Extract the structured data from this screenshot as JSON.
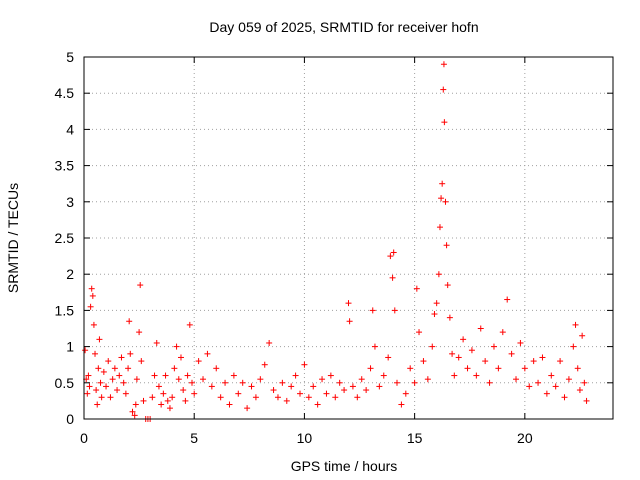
{
  "chart_data": {
    "type": "scatter",
    "title": "Day 059 of 2025, SRMTID for receiver hofn",
    "xlabel": "GPS time / hours",
    "ylabel": "SRMTID / TECUs",
    "xlim": [
      0,
      24
    ],
    "ylim": [
      0,
      5
    ],
    "xticks": [
      0,
      5,
      10,
      15,
      20
    ],
    "xtick_labels": [
      "0",
      "5",
      "10",
      "15",
      "20"
    ],
    "yticks": [
      0,
      0.5,
      1,
      1.5,
      2,
      2.5,
      3,
      3.5,
      4,
      4.5,
      5
    ],
    "ytick_labels": [
      "0",
      "0.5",
      "1",
      "1.5",
      "2",
      "2.5",
      "3",
      "3.5",
      "4",
      "4.5",
      "5"
    ],
    "grid": true,
    "marker": "+",
    "color": "#ff0000",
    "series": [
      {
        "name": "SRMTID",
        "points": [
          [
            0.05,
            0.95
          ],
          [
            0.1,
            0.55
          ],
          [
            0.15,
            0.35
          ],
          [
            0.2,
            0.6
          ],
          [
            0.25,
            0.45
          ],
          [
            0.3,
            1.55
          ],
          [
            0.35,
            1.8
          ],
          [
            0.4,
            1.7
          ],
          [
            0.45,
            1.3
          ],
          [
            0.5,
            0.9
          ],
          [
            0.55,
            0.4
          ],
          [
            0.6,
            0.2
          ],
          [
            0.65,
            0.7
          ],
          [
            0.7,
            1.1
          ],
          [
            0.75,
            0.5
          ],
          [
            0.8,
            0.3
          ],
          [
            0.9,
            0.65
          ],
          [
            1.0,
            0.45
          ],
          [
            1.1,
            0.8
          ],
          [
            1.2,
            0.3
          ],
          [
            1.3,
            0.55
          ],
          [
            1.4,
            0.7
          ],
          [
            1.5,
            0.4
          ],
          [
            1.6,
            0.6
          ],
          [
            1.7,
            0.85
          ],
          [
            1.8,
            0.5
          ],
          [
            1.9,
            0.35
          ],
          [
            2.0,
            0.7
          ],
          [
            2.05,
            1.35
          ],
          [
            2.1,
            0.9
          ],
          [
            2.2,
            0.1
          ],
          [
            2.3,
            0.05
          ],
          [
            2.35,
            0.2
          ],
          [
            2.4,
            0.55
          ],
          [
            2.5,
            1.2
          ],
          [
            2.55,
            1.85
          ],
          [
            2.6,
            0.8
          ],
          [
            2.7,
            0.25
          ],
          [
            2.8,
            0.0
          ],
          [
            2.9,
            0.0
          ],
          [
            3.0,
            0.0
          ],
          [
            3.1,
            0.3
          ],
          [
            3.2,
            0.6
          ],
          [
            3.3,
            1.05
          ],
          [
            3.4,
            0.45
          ],
          [
            3.5,
            0.2
          ],
          [
            3.6,
            0.35
          ],
          [
            3.7,
            0.6
          ],
          [
            3.8,
            0.25
          ],
          [
            3.9,
            0.15
          ],
          [
            4.0,
            0.3
          ],
          [
            4.1,
            0.7
          ],
          [
            4.2,
            1.0
          ],
          [
            4.3,
            0.55
          ],
          [
            4.4,
            0.85
          ],
          [
            4.5,
            0.4
          ],
          [
            4.6,
            0.25
          ],
          [
            4.7,
            0.6
          ],
          [
            4.8,
            1.3
          ],
          [
            4.9,
            0.5
          ],
          [
            5.0,
            0.35
          ],
          [
            5.2,
            0.8
          ],
          [
            5.4,
            0.55
          ],
          [
            5.6,
            0.9
          ],
          [
            5.8,
            0.45
          ],
          [
            6.0,
            0.7
          ],
          [
            6.2,
            0.3
          ],
          [
            6.4,
            0.5
          ],
          [
            6.6,
            0.2
          ],
          [
            6.8,
            0.6
          ],
          [
            7.0,
            0.35
          ],
          [
            7.2,
            0.5
          ],
          [
            7.4,
            0.15
          ],
          [
            7.6,
            0.45
          ],
          [
            7.8,
            0.3
          ],
          [
            8.0,
            0.55
          ],
          [
            8.2,
            0.75
          ],
          [
            8.4,
            1.05
          ],
          [
            8.6,
            0.4
          ],
          [
            8.8,
            0.3
          ],
          [
            9.0,
            0.5
          ],
          [
            9.2,
            0.25
          ],
          [
            9.4,
            0.45
          ],
          [
            9.6,
            0.6
          ],
          [
            9.8,
            0.35
          ],
          [
            10.0,
            0.75
          ],
          [
            10.2,
            0.3
          ],
          [
            10.4,
            0.45
          ],
          [
            10.6,
            0.2
          ],
          [
            10.8,
            0.55
          ],
          [
            11.0,
            0.35
          ],
          [
            11.2,
            0.6
          ],
          [
            11.4,
            0.3
          ],
          [
            11.6,
            0.5
          ],
          [
            11.8,
            0.4
          ],
          [
            12.0,
            1.6
          ],
          [
            12.05,
            1.35
          ],
          [
            12.2,
            0.45
          ],
          [
            12.4,
            0.3
          ],
          [
            12.6,
            0.55
          ],
          [
            12.8,
            0.4
          ],
          [
            13.0,
            0.7
          ],
          [
            13.1,
            1.5
          ],
          [
            13.2,
            1.0
          ],
          [
            13.4,
            0.45
          ],
          [
            13.6,
            0.6
          ],
          [
            13.8,
            0.85
          ],
          [
            13.9,
            2.25
          ],
          [
            14.0,
            1.95
          ],
          [
            14.05,
            2.3
          ],
          [
            14.1,
            1.5
          ],
          [
            14.2,
            0.5
          ],
          [
            14.4,
            0.2
          ],
          [
            14.6,
            0.35
          ],
          [
            14.8,
            0.7
          ],
          [
            15.0,
            0.5
          ],
          [
            15.1,
            1.8
          ],
          [
            15.2,
            1.2
          ],
          [
            15.4,
            0.8
          ],
          [
            15.6,
            0.55
          ],
          [
            15.8,
            1.0
          ],
          [
            15.9,
            1.45
          ],
          [
            16.0,
            1.6
          ],
          [
            16.1,
            2.0
          ],
          [
            16.15,
            2.65
          ],
          [
            16.2,
            3.05
          ],
          [
            16.25,
            3.25
          ],
          [
            16.3,
            4.55
          ],
          [
            16.33,
            4.9
          ],
          [
            16.35,
            4.1
          ],
          [
            16.4,
            3.0
          ],
          [
            16.45,
            2.4
          ],
          [
            16.5,
            1.85
          ],
          [
            16.6,
            1.4
          ],
          [
            16.7,
            0.9
          ],
          [
            16.8,
            0.6
          ],
          [
            17.0,
            0.85
          ],
          [
            17.2,
            1.1
          ],
          [
            17.4,
            0.7
          ],
          [
            17.6,
            0.95
          ],
          [
            17.8,
            0.6
          ],
          [
            18.0,
            1.25
          ],
          [
            18.2,
            0.8
          ],
          [
            18.4,
            0.5
          ],
          [
            18.6,
            1.0
          ],
          [
            18.8,
            0.7
          ],
          [
            19.0,
            1.2
          ],
          [
            19.2,
            1.65
          ],
          [
            19.4,
            0.9
          ],
          [
            19.6,
            0.55
          ],
          [
            19.8,
            1.05
          ],
          [
            20.0,
            0.7
          ],
          [
            20.2,
            0.45
          ],
          [
            20.4,
            0.8
          ],
          [
            20.6,
            0.5
          ],
          [
            20.8,
            0.85
          ],
          [
            21.0,
            0.35
          ],
          [
            21.2,
            0.6
          ],
          [
            21.4,
            0.45
          ],
          [
            21.6,
            0.8
          ],
          [
            21.8,
            0.3
          ],
          [
            22.0,
            0.55
          ],
          [
            22.2,
            1.0
          ],
          [
            22.3,
            1.3
          ],
          [
            22.4,
            0.7
          ],
          [
            22.5,
            0.4
          ],
          [
            22.6,
            1.15
          ],
          [
            22.7,
            0.5
          ],
          [
            22.8,
            0.25
          ]
        ]
      }
    ]
  }
}
